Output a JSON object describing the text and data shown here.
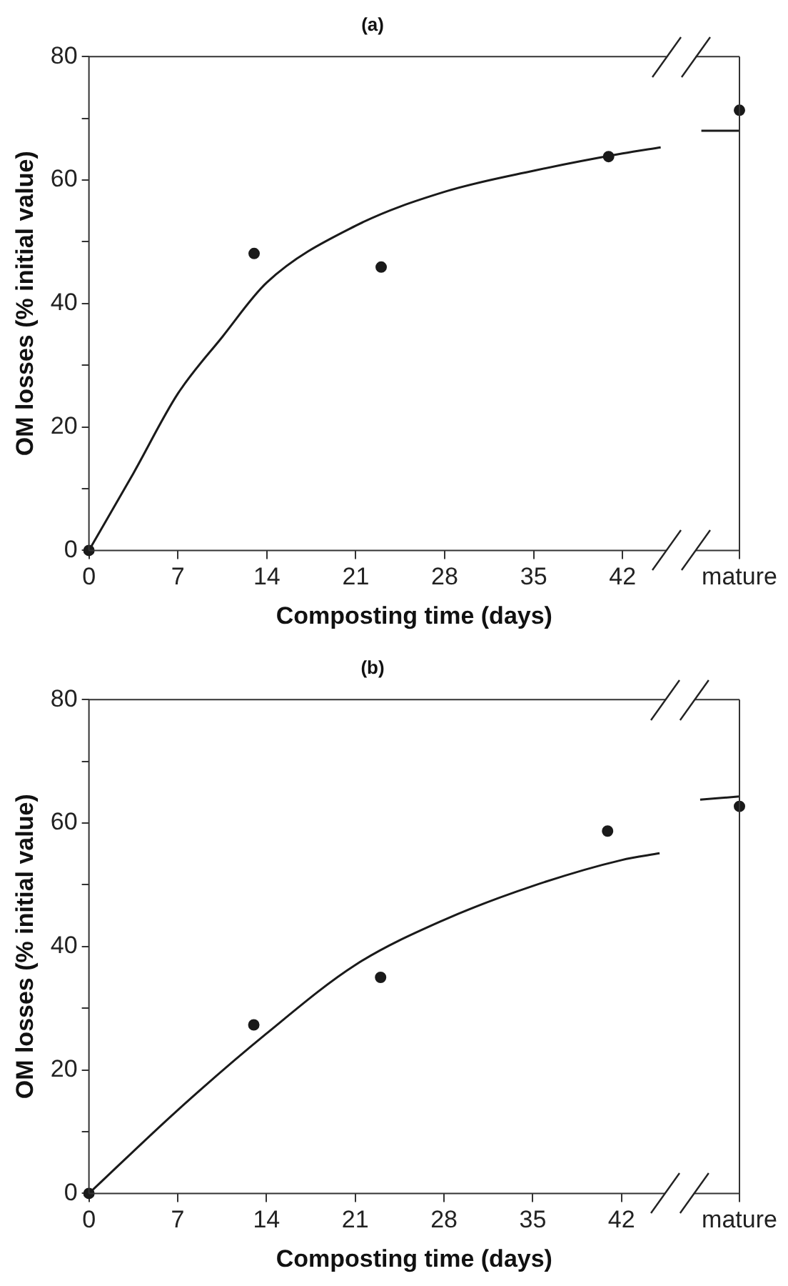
{
  "chart_data": [
    {
      "type": "scatter",
      "title": "(a)",
      "xlabel": "Composting time (days)",
      "ylabel": "OM losses (% initial value)",
      "xlim": [
        0,
        51.2
      ],
      "xticks": [
        0,
        7,
        14,
        21,
        28,
        35,
        42,
        {
          "value": 51.2,
          "label": "mature"
        }
      ],
      "ylim": [
        0,
        80
      ],
      "yticks": [
        0,
        {
          "value": 10,
          "label": null
        },
        20,
        {
          "value": 30,
          "label": null
        },
        40,
        {
          "value": 50,
          "label": null
        },
        60,
        {
          "value": 70,
          "label": null
        },
        80
      ],
      "legend": false,
      "series": [
        {
          "color": "#1a1a1a",
          "marker": "circle",
          "x": [
            0,
            13.0,
            23.0,
            40.9,
            51.2
          ],
          "values": [
            0,
            48.1,
            45.9,
            63.8,
            71.3
          ]
        },
        {
          "type": "line",
          "color": "#1a1a1a",
          "marker": "none",
          "x": [
            0,
            3.5,
            7,
            10.5,
            14,
            21,
            28,
            35,
            42,
            45
          ],
          "values": [
            0,
            12.5,
            25.4,
            34.6,
            43.4,
            52.6,
            58.1,
            61.5,
            64.3,
            65.3
          ]
        },
        {
          "type": "line",
          "color": "#1a1a1a",
          "marker": "none",
          "x": [
            48.2,
            51.2
          ],
          "values": [
            68.0,
            68.0
          ]
        }
      ]
    },
    {
      "type": "scatter",
      "title": "(b)",
      "xlabel": "Composting time (days)",
      "ylabel": "OM losses (% initial value)",
      "xlim": [
        0,
        51.3
      ],
      "xticks": [
        0,
        7,
        14,
        21,
        28,
        35,
        42,
        {
          "value": 51.3,
          "label": "mature"
        }
      ],
      "ylim": [
        0,
        80
      ],
      "yticks": [
        0,
        {
          "value": 10,
          "label": null
        },
        20,
        {
          "value": 30,
          "label": null
        },
        40,
        {
          "value": 50,
          "label": null
        },
        60,
        {
          "value": 70,
          "label": null
        },
        80
      ],
      "legend": false,
      "series": [
        {
          "color": "#1a1a1a",
          "marker": "circle",
          "x": [
            0,
            13.0,
            23.0,
            40.9,
            51.3
          ],
          "values": [
            0,
            27.3,
            35.0,
            58.7,
            62.7
          ]
        },
        {
          "type": "line",
          "color": "#1a1a1a",
          "marker": "none",
          "x": [
            0,
            7,
            14,
            21,
            28,
            35,
            42,
            45
          ],
          "values": [
            0,
            13.5,
            25.9,
            37.0,
            44.3,
            49.8,
            54.0,
            55.1
          ]
        },
        {
          "type": "line",
          "color": "#1a1a1a",
          "marker": "none",
          "x": [
            48.2,
            51.3
          ],
          "values": [
            63.8,
            64.3
          ]
        }
      ]
    }
  ]
}
